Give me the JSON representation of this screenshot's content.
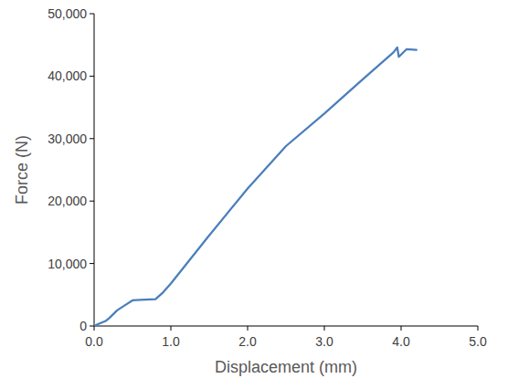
{
  "chart_data": {
    "type": "line",
    "x_label": "Displacement (mm)",
    "y_label": "Force (N)",
    "x": [
      0,
      0.05,
      0.15,
      0.2,
      0.3,
      0.4,
      0.5,
      0.6,
      0.8,
      0.9,
      1.0,
      1.5,
      2.0,
      2.5,
      3.0,
      3.5,
      3.9,
      3.95,
      3.97,
      4.07,
      4.2
    ],
    "values": [
      0,
      300,
      800,
      1300,
      2500,
      3300,
      4100,
      4200,
      4300,
      5400,
      6800,
      14500,
      22000,
      28800,
      34000,
      39500,
      43800,
      44600,
      43100,
      44300,
      44200
    ],
    "color": "#4a7ebb",
    "xlim": [
      0,
      5
    ],
    "ylim": [
      0,
      50000
    ],
    "xticks": [
      {
        "value": 0,
        "label": "0.0"
      },
      {
        "value": 1,
        "label": "1.0"
      },
      {
        "value": 2,
        "label": "2.0"
      },
      {
        "value": 3,
        "label": "3.0"
      },
      {
        "value": 4,
        "label": "4.0"
      },
      {
        "value": 5,
        "label": "5.0"
      }
    ],
    "yticks": [
      0,
      {
        "value": 10000,
        "label": "10,000"
      },
      {
        "value": 20000,
        "label": "20,000"
      },
      {
        "value": 30000,
        "label": "30,000"
      },
      {
        "value": 40000,
        "label": "40,000"
      },
      {
        "value": 50000,
        "label": "50,000"
      }
    ],
    "grid": false
  }
}
